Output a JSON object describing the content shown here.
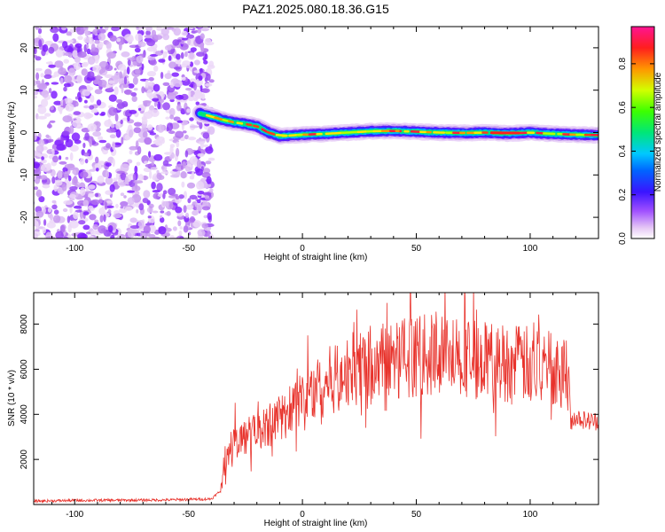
{
  "title": "PAZ1.2025.080.18.36.G15",
  "chart_data": [
    {
      "type": "heatmap",
      "xlabel": "Height of straight line (km)",
      "ylabel": "Frequency (Hz)",
      "xlim": [
        -118,
        130
      ],
      "ylim": [
        -25,
        25
      ],
      "xticks": [
        -100,
        -50,
        0,
        50,
        100
      ],
      "yticks": [
        -20,
        -10,
        0,
        10,
        20
      ],
      "colorbar": {
        "label": "Normalized spectral amplitude",
        "range": [
          0,
          0.97
        ],
        "ticks": [
          "0.0",
          "0.2",
          "0.4",
          "0.6",
          "0.8"
        ],
        "colormap": [
          "#ffffff",
          "#e6c8f5",
          "#8c1aff",
          "#1a1aff",
          "#00c8ff",
          "#00e678",
          "#3cff00",
          "#e6ff00",
          "#ff8c00",
          "#ff1a1a",
          "#ff1493"
        ]
      },
      "noise_region": {
        "x_range": [
          -118,
          -41
        ],
        "y_range": [
          -25,
          25
        ]
      },
      "signal_track": {
        "x": [
          -45,
          -40,
          -35,
          -30,
          -25,
          -20,
          -15,
          -10,
          -5,
          0,
          10,
          20,
          30,
          40,
          50,
          60,
          70,
          80,
          90,
          100,
          110,
          120,
          130
        ],
        "frequency": [
          4.5,
          3.8,
          3.0,
          2.4,
          2.0,
          1.5,
          0.0,
          -0.8,
          -0.7,
          -0.5,
          -0.3,
          0.0,
          0.3,
          0.4,
          0.2,
          0.0,
          -0.1,
          0.0,
          -0.2,
          0.0,
          -0.3,
          -0.5,
          -0.6
        ]
      }
    },
    {
      "type": "line",
      "xlabel": "Height of straight line (km)",
      "ylabel": "SNR (10 * v/v)",
      "xlim": [
        -118,
        130
      ],
      "ylim": [
        0,
        9400
      ],
      "xticks": [
        -100,
        -50,
        0,
        50,
        100
      ],
      "yticks": [
        2000,
        4000,
        6000,
        8000
      ],
      "color": "#e8322b",
      "envelope": {
        "x": [
          -118,
          -100,
          -60,
          -40,
          -36,
          -33,
          -30,
          -20,
          -10,
          0,
          10,
          20,
          25,
          30,
          40,
          50,
          60,
          70,
          80,
          90,
          100,
          110,
          116,
          118,
          120,
          125,
          130
        ],
        "y": [
          150,
          180,
          200,
          250,
          600,
          2200,
          2800,
          3200,
          3800,
          4700,
          5400,
          5900,
          6200,
          6300,
          6500,
          6600,
          6600,
          6600,
          6400,
          6300,
          6200,
          6100,
          6000,
          3700,
          3900,
          3700,
          3700
        ]
      }
    }
  ]
}
